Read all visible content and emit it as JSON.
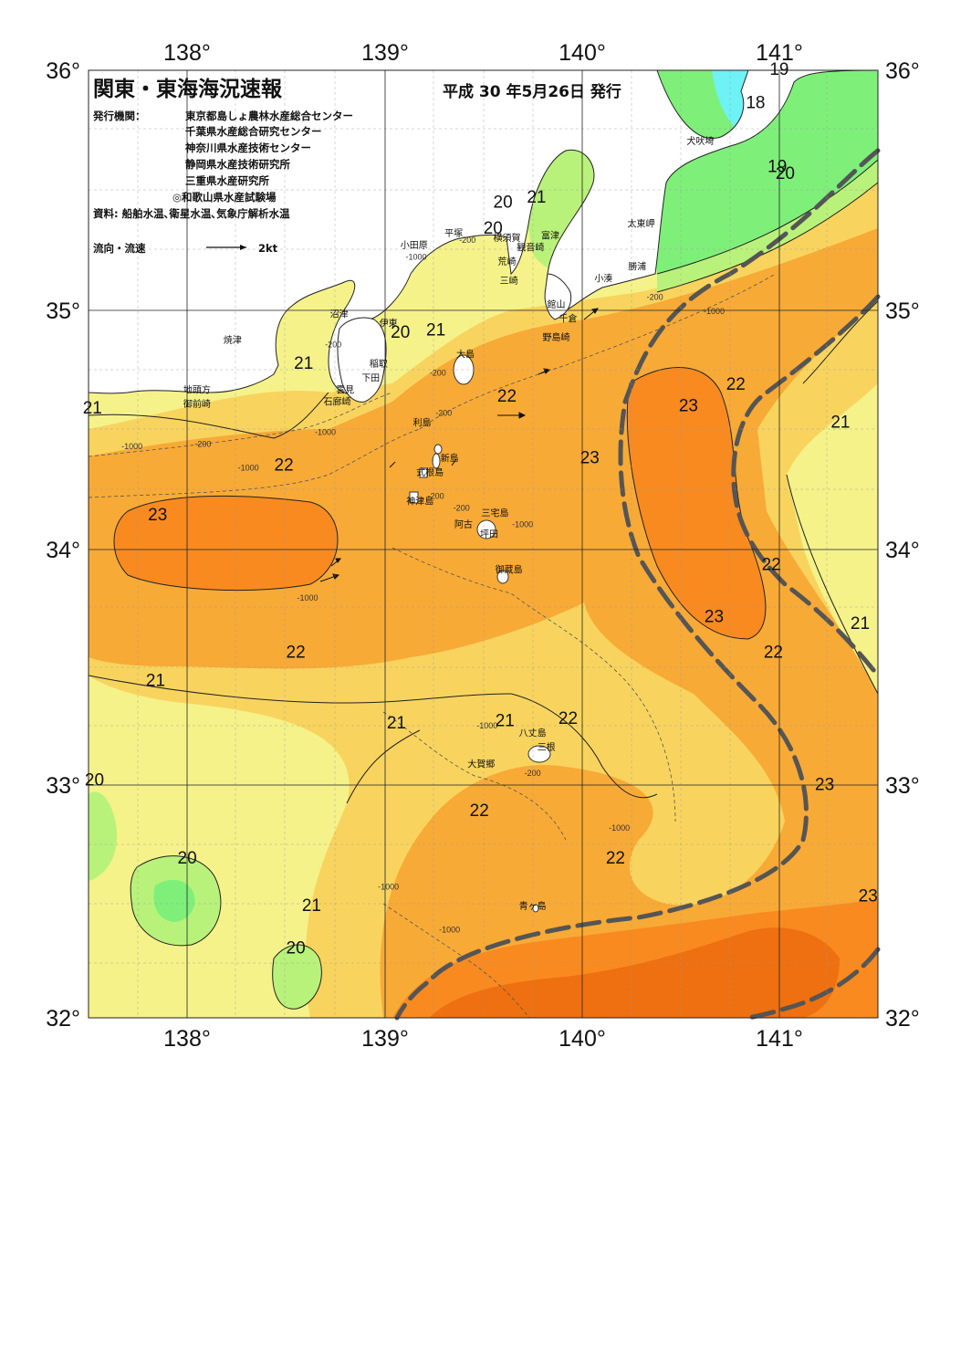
{
  "header": {
    "title": "関東・東海海況速報",
    "issue_date": "平成 30 年5月26日 発行",
    "issuer_label": "発行機関：",
    "issuers": [
      "東京都島しょ農林水産総合センター",
      "千葉県水産総合研究センター",
      "神奈川県水産技術センター",
      "静岡県水産技術研究所",
      "三重県水産研究所",
      "◎和歌山県水産試験場"
    ],
    "sources": "資料: 船舶水温､衛星水温､気象庁解析水温",
    "legend_label": "流向・流速",
    "legend_value": "2kt"
  },
  "axes": {
    "lon_labels": [
      "138°",
      "139°",
      "140°",
      "141°"
    ],
    "lat_labels": [
      "36°",
      "35°",
      "34°",
      "33°",
      "32°"
    ]
  },
  "colors": {
    "t18": "#6ef2f6",
    "t19": "#7ef07a",
    "t20": "#b9f27a",
    "t21": "#f5f28a",
    "t22": "#f8d45e",
    "t23": "#f8aa36",
    "t24": "#f88a20",
    "t25": "#ee7010",
    "t26": "#e05a08",
    "land": "#ffffff",
    "kuroshio": "#555555"
  },
  "places": [
    {
      "name": "小田原",
      "lon": 139.15,
      "lat": 35.26
    },
    {
      "name": "平塚",
      "lon": 139.35,
      "lat": 35.31
    },
    {
      "name": "横須賀",
      "lon": 139.62,
      "lat": 35.29
    },
    {
      "name": "観音崎",
      "lon": 139.74,
      "lat": 35.25
    },
    {
      "name": "荒崎",
      "lon": 139.62,
      "lat": 35.19
    },
    {
      "name": "三崎",
      "lon": 139.63,
      "lat": 35.11
    },
    {
      "name": "富津",
      "lon": 139.84,
      "lat": 35.3
    },
    {
      "name": "館山",
      "lon": 139.87,
      "lat": 35.01
    },
    {
      "name": "千倉",
      "lon": 139.93,
      "lat": 34.95
    },
    {
      "name": "野島崎",
      "lon": 139.87,
      "lat": 34.87
    },
    {
      "name": "太東岬",
      "lon": 140.3,
      "lat": 35.35
    },
    {
      "name": "勝浦",
      "lon": 140.28,
      "lat": 35.17
    },
    {
      "name": "小湊",
      "lon": 140.11,
      "lat": 35.12
    },
    {
      "name": "犬吠埼",
      "lon": 140.6,
      "lat": 35.7
    },
    {
      "name": "沼津",
      "lon": 138.77,
      "lat": 34.97
    },
    {
      "name": "焼津",
      "lon": 138.23,
      "lat": 34.86
    },
    {
      "name": "伊東",
      "lon": 139.02,
      "lat": 34.93
    },
    {
      "name": "稲取",
      "lon": 138.97,
      "lat": 34.76
    },
    {
      "name": "下田",
      "lon": 138.93,
      "lat": 34.7
    },
    {
      "name": "雲見",
      "lon": 138.8,
      "lat": 34.65
    },
    {
      "name": "石廊崎",
      "lon": 138.76,
      "lat": 34.6
    },
    {
      "name": "地頭方",
      "lon": 138.05,
      "lat": 34.65
    },
    {
      "name": "御前崎",
      "lon": 138.05,
      "lat": 34.59
    },
    {
      "name": "大島",
      "lon": 139.41,
      "lat": 34.8
    },
    {
      "name": "利島",
      "lon": 139.19,
      "lat": 34.51
    },
    {
      "name": "新島",
      "lon": 139.33,
      "lat": 34.36
    },
    {
      "name": "式根島",
      "lon": 139.23,
      "lat": 34.3
    },
    {
      "name": "神津島",
      "lon": 139.18,
      "lat": 34.18
    },
    {
      "name": "三宅島",
      "lon": 139.56,
      "lat": 34.13
    },
    {
      "name": "阿古",
      "lon": 139.4,
      "lat": 34.08
    },
    {
      "name": "坪田",
      "lon": 139.53,
      "lat": 34.04
    },
    {
      "name": "御蔵島",
      "lon": 139.63,
      "lat": 33.89
    },
    {
      "name": "八丈島",
      "lon": 139.75,
      "lat": 33.2
    },
    {
      "name": "三根",
      "lon": 139.82,
      "lat": 33.14
    },
    {
      "name": "大賀郷",
      "lon": 139.49,
      "lat": 33.07
    },
    {
      "name": "青ヶ島",
      "lon": 139.75,
      "lat": 32.47
    }
  ],
  "isotherm_labels": [
    {
      "text": "19",
      "lon": 141.0,
      "lat": 36.0
    },
    {
      "text": "18",
      "lon": 140.88,
      "lat": 35.86
    },
    {
      "text": "19",
      "lon": 140.99,
      "lat": 35.59
    },
    {
      "text": "20",
      "lon": 141.03,
      "lat": 35.56
    },
    {
      "text": "20",
      "lon": 139.6,
      "lat": 35.44
    },
    {
      "text": "21",
      "lon": 139.77,
      "lat": 35.46
    },
    {
      "text": "20",
      "lon": 139.55,
      "lat": 35.33
    },
    {
      "text": "20",
      "lon": 139.08,
      "lat": 34.89
    },
    {
      "text": "21",
      "lon": 139.26,
      "lat": 34.9
    },
    {
      "text": "21",
      "lon": 138.59,
      "lat": 34.76
    },
    {
      "text": "22",
      "lon": 139.62,
      "lat": 34.62
    },
    {
      "text": "23",
      "lon": 140.54,
      "lat": 34.58
    },
    {
      "text": "22",
      "lon": 140.78,
      "lat": 34.67
    },
    {
      "text": "21",
      "lon": 141.31,
      "lat": 34.51
    },
    {
      "text": "21",
      "lon": 137.52,
      "lat": 34.57
    },
    {
      "text": "22",
      "lon": 138.49,
      "lat": 34.33
    },
    {
      "text": "23",
      "lon": 140.04,
      "lat": 34.36
    },
    {
      "text": "23",
      "lon": 137.85,
      "lat": 34.12
    },
    {
      "text": "22",
      "lon": 140.96,
      "lat": 33.91
    },
    {
      "text": "23",
      "lon": 140.67,
      "lat": 33.69
    },
    {
      "text": "21",
      "lon": 141.41,
      "lat": 33.66
    },
    {
      "text": "22",
      "lon": 138.55,
      "lat": 33.54
    },
    {
      "text": "22",
      "lon": 140.97,
      "lat": 33.54
    },
    {
      "text": "21",
      "lon": 137.84,
      "lat": 33.42
    },
    {
      "text": "21",
      "lon": 139.06,
      "lat": 33.24
    },
    {
      "text": "21",
      "lon": 139.61,
      "lat": 33.25
    },
    {
      "text": "22",
      "lon": 139.93,
      "lat": 33.26
    },
    {
      "text": "20",
      "lon": 137.53,
      "lat": 33.0
    },
    {
      "text": "23",
      "lon": 141.23,
      "lat": 32.98
    },
    {
      "text": "22",
      "lon": 139.48,
      "lat": 32.87
    },
    {
      "text": "22",
      "lon": 140.17,
      "lat": 32.67
    },
    {
      "text": "20",
      "lon": 138.0,
      "lat": 32.67
    },
    {
      "text": "23",
      "lon": 141.45,
      "lat": 32.51
    },
    {
      "text": "21",
      "lon": 138.63,
      "lat": 32.47
    },
    {
      "text": "20",
      "lon": 138.55,
      "lat": 32.29
    }
  ],
  "depth_labels": [
    {
      "text": "-1000",
      "lon": 139.16,
      "lat": 35.21
    },
    {
      "text": "-200",
      "lon": 139.42,
      "lat": 35.28
    },
    {
      "text": "-200",
      "lon": 140.37,
      "lat": 35.04
    },
    {
      "text": "-1000",
      "lon": 140.67,
      "lat": 34.98
    },
    {
      "text": "-200",
      "lon": 138.74,
      "lat": 34.84
    },
    {
      "text": "-200",
      "lon": 139.27,
      "lat": 34.72
    },
    {
      "text": "-200",
      "lon": 139.3,
      "lat": 34.55
    },
    {
      "text": "-1000",
      "lon": 138.7,
      "lat": 34.47
    },
    {
      "text": "-200",
      "lon": 138.08,
      "lat": 34.42
    },
    {
      "text": "-1000",
      "lon": 137.72,
      "lat": 34.41
    },
    {
      "text": "-1000",
      "lon": 138.31,
      "lat": 34.32
    },
    {
      "text": "-200",
      "lon": 139.26,
      "lat": 34.2
    },
    {
      "text": "-200",
      "lon": 139.39,
      "lat": 34.15
    },
    {
      "text": "-1000",
      "lon": 139.7,
      "lat": 34.08
    },
    {
      "text": "-1000",
      "lon": 138.61,
      "lat": 33.77
    },
    {
      "text": "-1000",
      "lon": 139.52,
      "lat": 33.23
    },
    {
      "text": "-200",
      "lon": 139.75,
      "lat": 33.03
    },
    {
      "text": "-1000",
      "lon": 140.19,
      "lat": 32.8
    },
    {
      "text": "-1000",
      "lon": 139.02,
      "lat": 32.55
    },
    {
      "text": "-1000",
      "lon": 139.33,
      "lat": 32.37
    }
  ]
}
